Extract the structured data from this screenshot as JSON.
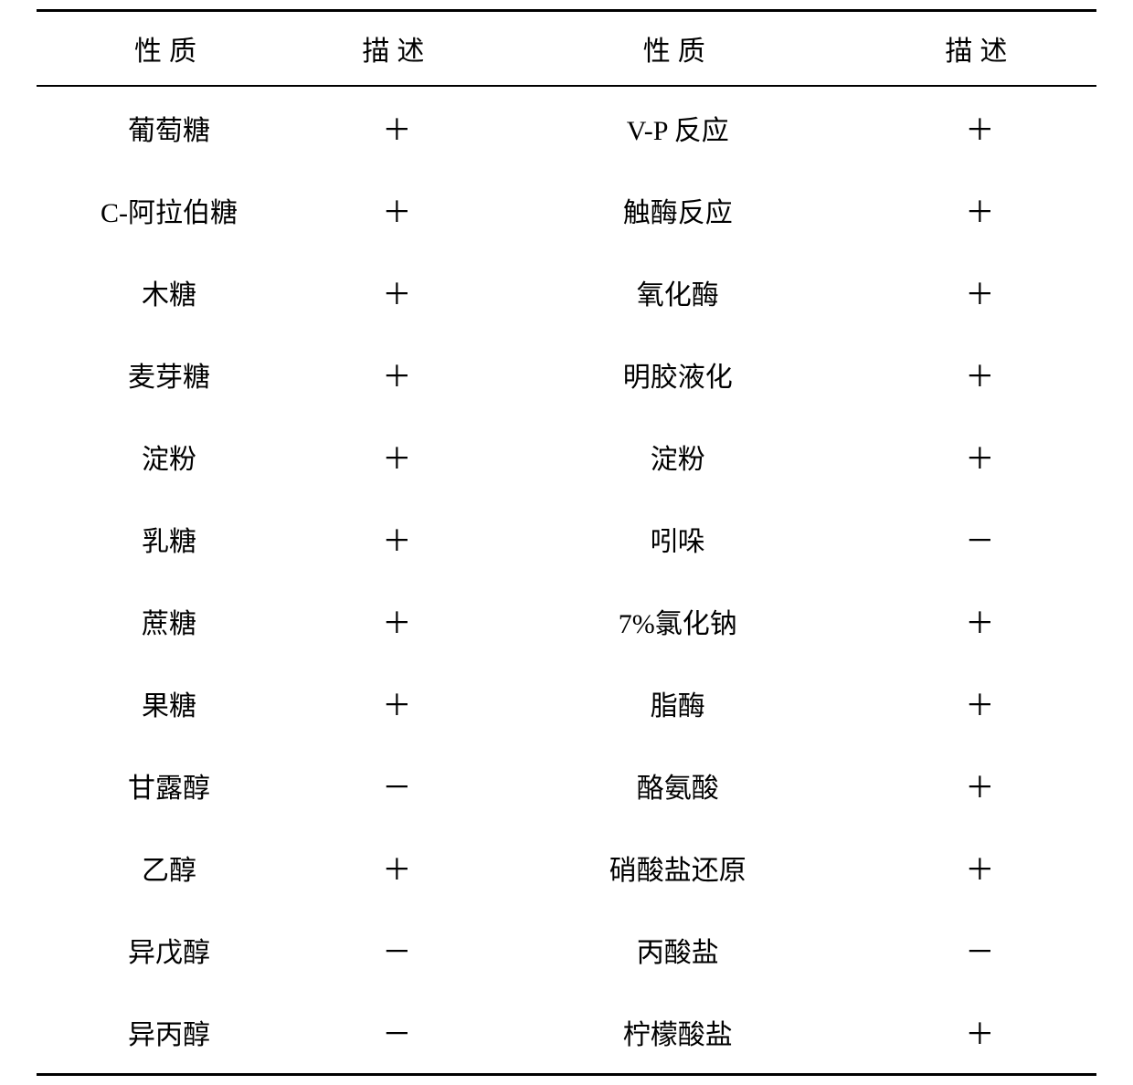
{
  "table": {
    "type": "table",
    "background_color": "#ffffff",
    "text_color": "#000000",
    "border_color": "#000000",
    "font_family": "SimSun",
    "header_fontsize": 30,
    "cell_fontsize": 30,
    "border_top_width": 3,
    "header_border_bottom_width": 2,
    "border_bottom_width": 3,
    "column_widths": [
      "25%",
      "18%",
      "35%",
      "22%"
    ],
    "columns": [
      "性质",
      "描述",
      "性质",
      "描述"
    ],
    "rows": [
      {
        "prop1": "葡萄糖",
        "desc1": "＋",
        "prop2": "V-P 反应",
        "desc2": "＋"
      },
      {
        "prop1": "C-阿拉伯糖",
        "desc1": "＋",
        "prop2": "触酶反应",
        "desc2": "＋"
      },
      {
        "prop1": "木糖",
        "desc1": "＋",
        "prop2": "氧化酶",
        "desc2": "＋"
      },
      {
        "prop1": "麦芽糖",
        "desc1": "＋",
        "prop2": "明胶液化",
        "desc2": "＋"
      },
      {
        "prop1": "淀粉",
        "desc1": "＋",
        "prop2": "淀粉",
        "desc2": "＋"
      },
      {
        "prop1": "乳糖",
        "desc1": "＋",
        "prop2": "吲哚",
        "desc2": "－"
      },
      {
        "prop1": "蔗糖",
        "desc1": "＋",
        "prop2": "7%氯化钠",
        "desc2": "＋"
      },
      {
        "prop1": "果糖",
        "desc1": "＋",
        "prop2": "脂酶",
        "desc2": "＋"
      },
      {
        "prop1": "甘露醇",
        "desc1": "－",
        "prop2": "酪氨酸",
        "desc2": "＋"
      },
      {
        "prop1": "乙醇",
        "desc1": "＋",
        "prop2": "硝酸盐还原",
        "desc2": "＋"
      },
      {
        "prop1": "异戊醇",
        "desc1": "－",
        "prop2": "丙酸盐",
        "desc2": "－"
      },
      {
        "prop1": "异丙醇",
        "desc1": "－",
        "prop2": "柠檬酸盐",
        "desc2": "＋"
      }
    ]
  }
}
